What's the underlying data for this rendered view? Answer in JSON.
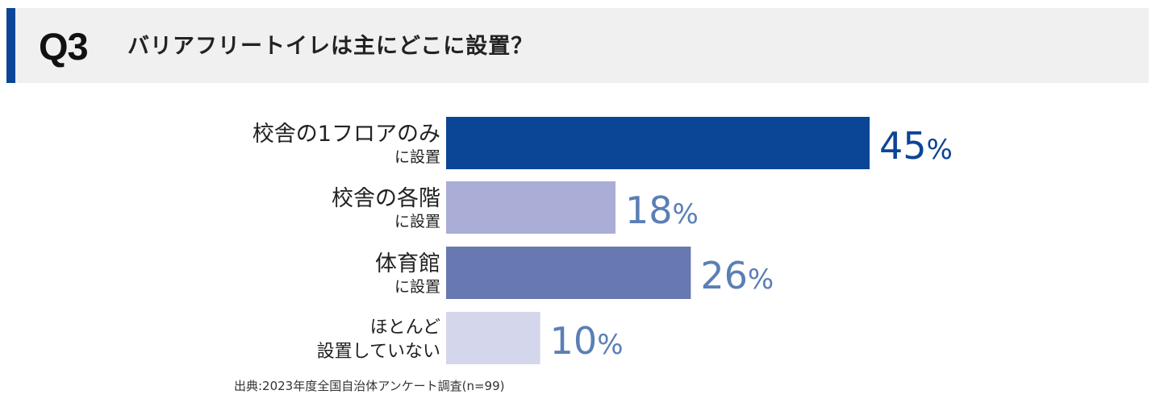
{
  "header": {
    "q_label": "Q3",
    "title": "バリアフリートイレは主にどこに設置？"
  },
  "colors": {
    "header_accent": "#0b4596",
    "header_bg": "#f0f0f0",
    "value_text_dark": "#0b4596",
    "value_text_light": "#5a7fb5"
  },
  "chart_data": {
    "type": "bar",
    "orientation": "horizontal",
    "categories": [
      [
        "校舎の1フロアのみ",
        "に設置"
      ],
      [
        "校舎の各階",
        "に設置"
      ],
      [
        "体育館",
        "に設置"
      ],
      [
        "ほとんど",
        "設置していない"
      ]
    ],
    "values": [
      45,
      18,
      26,
      10
    ],
    "value_labels": [
      "45",
      "18",
      "26",
      "10"
    ],
    "unit": "%",
    "bar_colors": [
      "#0b4596",
      "#aaaed6",
      "#6878b0",
      "#d4d6eb"
    ],
    "xlim": [
      0,
      45
    ],
    "grid": false,
    "legend": "none"
  },
  "source": "出典:2023年度全国自治体アンケート調査(n=99)"
}
